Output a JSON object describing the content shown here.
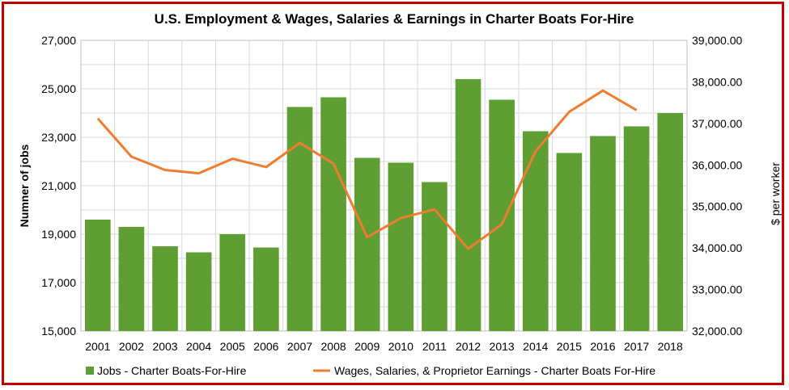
{
  "chart_data": {
    "type": "bar",
    "title": "U.S. Employment & Wages, Salaries & Earnings in Charter Boats For-Hire",
    "ylabel": "Numner of jobs",
    "y2label": "$ per worker",
    "xlabel": "",
    "ylim": [
      15000,
      27000
    ],
    "y2lim": [
      32000,
      39000
    ],
    "yticks": [
      "15,000",
      "17,000",
      "19,000",
      "21,000",
      "23,000",
      "25,000",
      "27,000"
    ],
    "y2ticks": [
      "32,000.00",
      "33,000.00",
      "34,000.00",
      "35,000.00",
      "36,000.00",
      "37,000.00",
      "38,000.00",
      "39,000.00"
    ],
    "grid": true,
    "legend_position": "bottom",
    "categories": [
      "2001",
      "2002",
      "2003",
      "2004",
      "2005",
      "2006",
      "2007",
      "2008",
      "2009",
      "2010",
      "2011",
      "2012",
      "2013",
      "2014",
      "2015",
      "2016",
      "2017",
      "2018"
    ],
    "series": [
      {
        "name": "Jobs - Charter Boats-For-Hire",
        "type": "bar",
        "axis": "left",
        "color": "#5e9e32",
        "values": [
          19600,
          19300,
          18500,
          18250,
          19000,
          18450,
          24250,
          24650,
          22150,
          21950,
          21150,
          25400,
          24550,
          23250,
          22350,
          23050,
          23450,
          24000
        ]
      },
      {
        "name": "Wages, Salaries, & Proprietor Earnings - Charter Boats For-Hire",
        "type": "line",
        "axis": "right",
        "color": "#ed7d31",
        "values": [
          37120,
          36200,
          35880,
          35800,
          36150,
          35950,
          36530,
          36030,
          34260,
          34720,
          34930,
          33980,
          34570,
          36330,
          37280,
          37790,
          37320,
          null
        ]
      }
    ]
  }
}
